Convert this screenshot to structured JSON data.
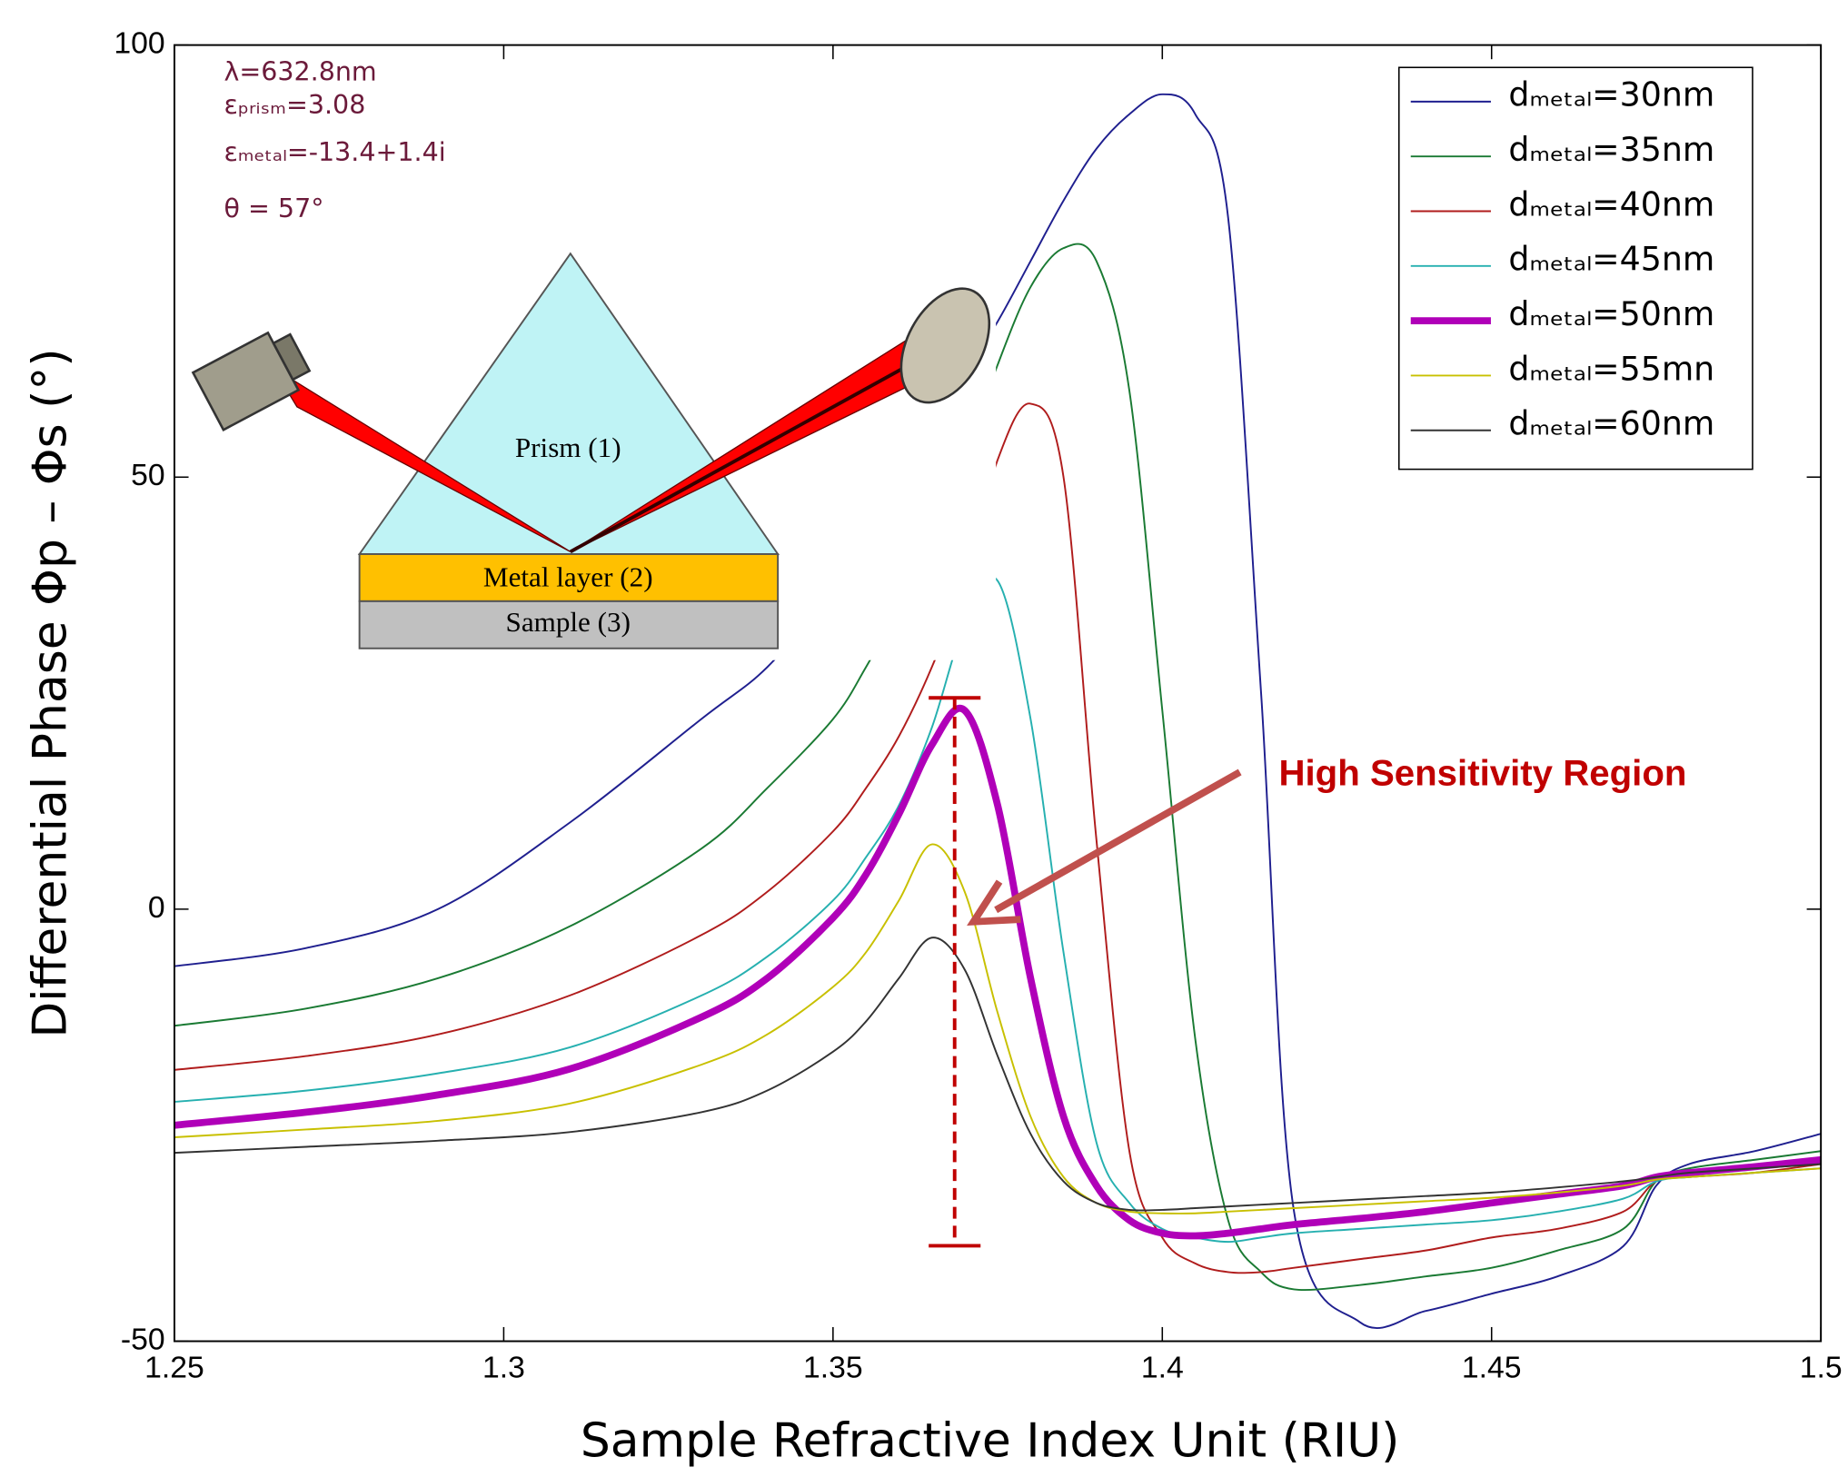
{
  "chart_data": {
    "type": "line",
    "x_label": "Sample Refractive Index Unit (RIU)",
    "y_label": "Differential Phase Φp – Φs  (°)",
    "annotations": [
      "λ=632.8nm",
      "εₚᵣᵢₛₘ=3.08",
      "εₘₑₜₐₗ=-13.4+1.4i",
      "θ = 57°"
    ],
    "callout": "High Sensitivity Region",
    "diagram_labels": [
      "Prism (1)",
      "Metal layer (2)",
      "Sample (3)"
    ],
    "xlim": [
      1.25,
      1.5
    ],
    "ylim": [
      -50,
      100
    ],
    "xticks": [
      1.25,
      1.3,
      1.35,
      1.4,
      1.45,
      1.5
    ],
    "yticks": [
      -50,
      0,
      50,
      100
    ],
    "grid": false,
    "legend": "upper right",
    "x": [
      1.25,
      1.27,
      1.29,
      1.31,
      1.33,
      1.34,
      1.35,
      1.355,
      1.36,
      1.365,
      1.37,
      1.375,
      1.38,
      1.385,
      1.39,
      1.395,
      1.4,
      1.405,
      1.41,
      1.415,
      1.42,
      1.43,
      1.44,
      1.45,
      1.46,
      1.47,
      1.475,
      1.48,
      1.49,
      1.5
    ],
    "series": [
      {
        "name": "dₘₑₜₐₗ=30nm",
        "color": "#1f1f8f",
        "width": 1.5,
        "values": [
          -6.6,
          -4.5,
          0,
          10,
          22,
          28,
          37,
          43,
          50,
          56,
          62,
          68,
          75,
          82,
          88,
          92,
          94.3,
          92,
          80,
          25,
          -35,
          -47.8,
          -46.5,
          -44.5,
          -42.5,
          -39,
          -32,
          -29.5,
          -28,
          -26
        ]
      },
      {
        "name": "dₘₑₜₐₗ=35nm",
        "color": "#1a7a33",
        "width": 1.5,
        "values": [
          -13.5,
          -11.5,
          -8,
          -2,
          7,
          14,
          22,
          28,
          35,
          43,
          52,
          63,
          72,
          76.5,
          75,
          60,
          23,
          -15,
          -36,
          -42,
          -44,
          -43.5,
          -42.5,
          -41.5,
          -39.5,
          -37,
          -31.5,
          -30,
          -29,
          -28
        ]
      },
      {
        "name": "dₘₑₜₐₗ=40nm",
        "color": "#b01c1c",
        "width": 1.5,
        "values": [
          -18.6,
          -17,
          -14.5,
          -10,
          -3,
          2,
          9,
          14,
          20,
          28,
          38,
          52,
          58.5,
          50,
          8,
          -28,
          -38,
          -41,
          -42,
          -42,
          -41.5,
          -40.5,
          -39.5,
          -38,
          -37,
          -35,
          -31.5,
          -31,
          -30.5,
          -29.5
        ]
      },
      {
        "name": "dₘₑₜₐₗ=45nm",
        "color": "#26b0b0",
        "width": 1.5,
        "values": [
          -22.3,
          -21,
          -19,
          -16,
          -10,
          -5.5,
          1,
          6,
          12,
          21,
          33,
          38,
          22,
          -5,
          -27,
          -34,
          -37,
          -38,
          -38.5,
          -38,
          -37.5,
          -37,
          -36.5,
          -36,
          -35,
          -33.5,
          -31.5,
          -31,
          -30.5,
          -30
        ]
      },
      {
        "name": "dₘₑₜₐₗ=50nm",
        "color": "#b000b8",
        "width": 6,
        "values": [
          -25,
          -23.5,
          -21.5,
          -18.5,
          -12.5,
          -8,
          -1,
          4,
          11,
          19,
          23,
          12,
          -8,
          -24,
          -32,
          -36,
          -37.5,
          -37.8,
          -37.5,
          -37,
          -36.5,
          -35.8,
          -35,
          -34,
          -33,
          -32,
          -31,
          -30.5,
          -29.8,
          -29
        ]
      },
      {
        "name": "dₘₑₜₐₗ=55mn",
        "color": "#c8c000",
        "width": 1.5,
        "values": [
          -26.4,
          -25.5,
          -24.5,
          -22.5,
          -18,
          -14.5,
          -9,
          -5,
          1,
          7.5,
          2,
          -12,
          -24,
          -31,
          -34,
          -35,
          -35.2,
          -35.2,
          -35,
          -34.8,
          -34.6,
          -34.2,
          -33.8,
          -33.4,
          -32.8,
          -32,
          -31.3,
          -31,
          -30.5,
          -30
        ]
      },
      {
        "name": "dₘₑₜₐₗ=60nm",
        "color": "#333333",
        "width": 1.5,
        "values": [
          -28.2,
          -27.5,
          -26.8,
          -25.8,
          -23.5,
          -21,
          -16.5,
          -13,
          -8,
          -3.3,
          -7,
          -17,
          -26,
          -31.5,
          -34,
          -34.8,
          -34.8,
          -34.6,
          -34.4,
          -34.2,
          -34,
          -33.6,
          -33.2,
          -32.8,
          -32.2,
          -31.5,
          -31,
          -30.5,
          -30,
          -29.5
        ]
      }
    ]
  }
}
